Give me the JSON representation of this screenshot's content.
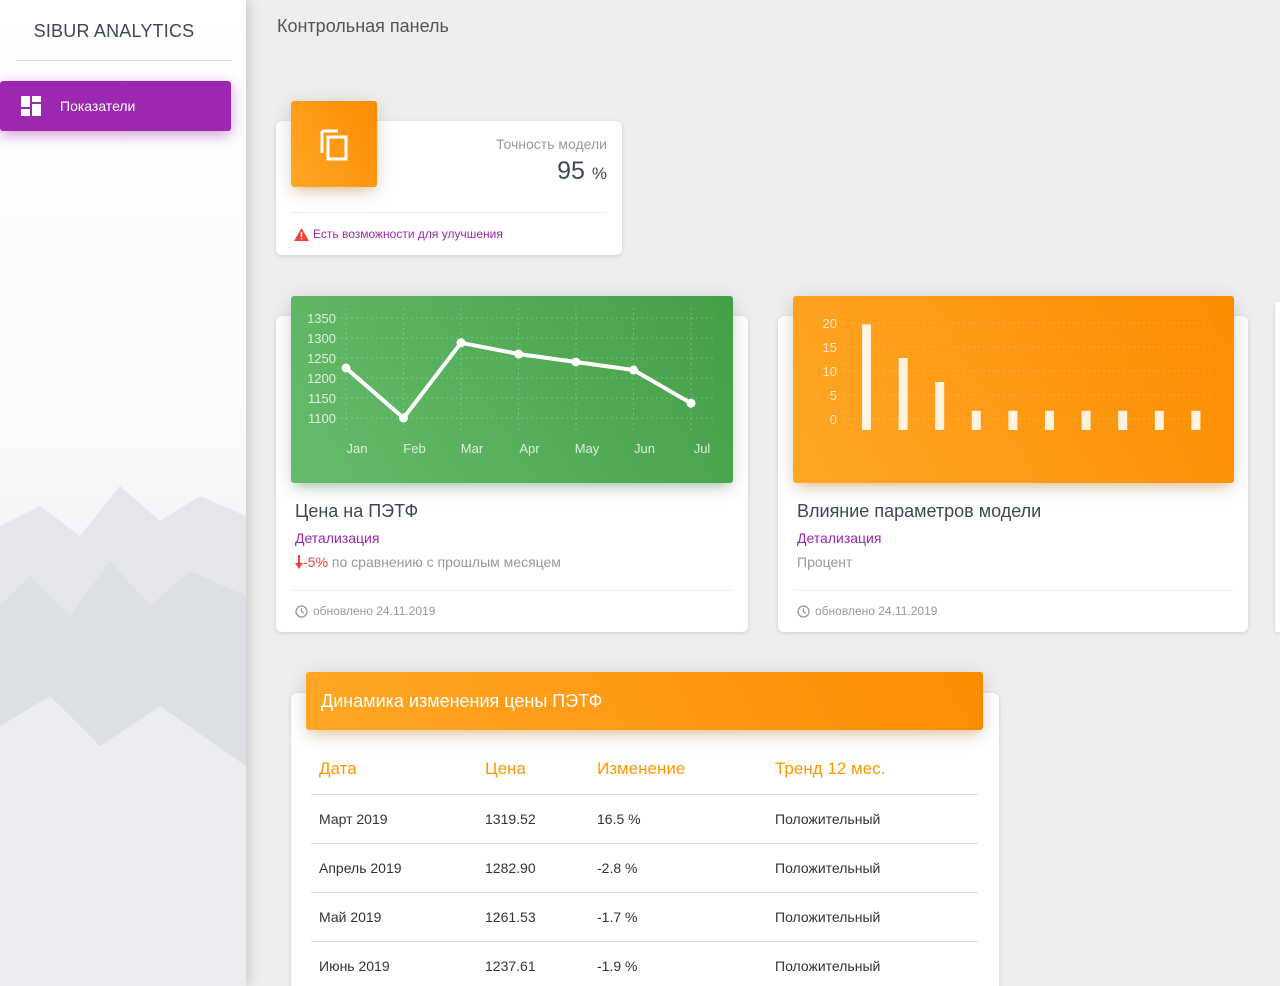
{
  "sidebar": {
    "brand": "SIBUR ANALYTICS",
    "items": [
      {
        "label": "Показатели",
        "icon": "dashboard-icon",
        "active": true
      }
    ]
  },
  "header": {
    "title": "Контрольная панель"
  },
  "stat_card": {
    "icon": "copy-icon",
    "label": "Точность модели",
    "value": "95",
    "unit": "%",
    "footer": "Есть возможности для улучшения",
    "footer_icon": "warning-icon"
  },
  "price_card": {
    "title": "Цена на ПЭТФ",
    "link": "Детализация",
    "change": "-5%",
    "change_text": "по сравнению с прошлым месяцем",
    "updated": "обновлено 24.11.2019"
  },
  "params_card": {
    "title": "Влияние параметров модели",
    "link": "Детализация",
    "subtitle": "Процент",
    "updated": "обновлено 24.11.2019"
  },
  "table": {
    "title": "Динамика изменения цены ПЭТФ",
    "columns": [
      "Дата",
      "Цена",
      "Изменение",
      "Тренд 12 мес."
    ],
    "rows": [
      [
        "Март 2019",
        "1319.52",
        "16.5 %",
        "Положительный"
      ],
      [
        "Апрель 2019",
        "1282.90",
        "-2.8 %",
        "Положительный"
      ],
      [
        "Май 2019",
        "1261.53",
        "-1.7 %",
        "Положительный"
      ],
      [
        "Июнь 2019",
        "1237.61",
        "-1.9 %",
        "Положительный"
      ]
    ]
  },
  "colors": {
    "purple": "#9c27b0",
    "orange": "#ff9800",
    "green": "#4caf50",
    "warning": "#f44336"
  },
  "chart_data": [
    {
      "type": "line",
      "title": "",
      "categories": [
        "Jan",
        "Feb",
        "Mar",
        "Apr",
        "May",
        "Jun",
        "Jul"
      ],
      "values": [
        1225,
        1100,
        1288,
        1260,
        1240,
        1220,
        1137
      ],
      "yticks": [
        1100,
        1150,
        1200,
        1250,
        1300,
        1350
      ],
      "ylim": [
        1100,
        1350
      ],
      "grid": true
    },
    {
      "type": "bar",
      "title": "",
      "categories": [
        "",
        "",
        "",
        "",
        "",
        "",
        "",
        "",
        "",
        ""
      ],
      "values": [
        22,
        15,
        10,
        4,
        4,
        4,
        4,
        4,
        4,
        4
      ],
      "yticks": [
        0,
        5,
        10,
        15,
        20
      ],
      "ylim": [
        0,
        20
      ],
      "grid": true
    }
  ]
}
